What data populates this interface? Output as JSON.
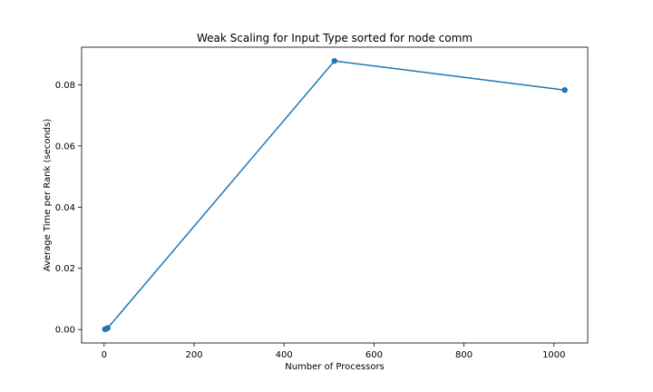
{
  "chart_data": {
    "type": "line",
    "title": "Weak Scaling for Input Type sorted for node comm",
    "xlabel": "Number of Processors",
    "ylabel": "Average Time per Rank (seconds)",
    "xlim": [
      -50,
      1075
    ],
    "ylim": [
      -0.0044,
      0.0923
    ],
    "xticks": [
      0,
      200,
      400,
      600,
      800,
      1000
    ],
    "yticks": [
      0.0,
      0.02,
      0.04,
      0.06,
      0.08
    ],
    "xtick_labels": [
      "0",
      "200",
      "400",
      "600",
      "800",
      "1000"
    ],
    "ytick_labels": [
      "0.00",
      "0.02",
      "0.04",
      "0.06",
      "0.08"
    ],
    "grid": false,
    "series": [
      {
        "color": "#1f77b4",
        "marker": "circle",
        "x": [
          2,
          4,
          8,
          512,
          1024
        ],
        "y": [
          0.0001,
          0.0002,
          0.0005,
          0.0878,
          0.0783
        ]
      }
    ]
  }
}
